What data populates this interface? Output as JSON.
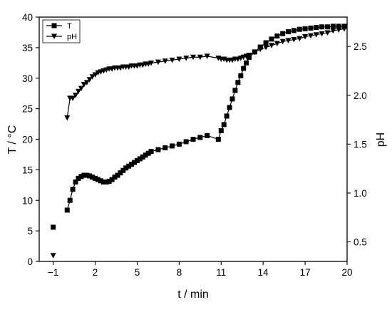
{
  "chart_data": {
    "type": "scatter",
    "xlabel": "t / min",
    "ylabel_left": "T / °C",
    "ylabel_right": "pH",
    "xlim": [
      -2,
      20
    ],
    "ylim_left": [
      0,
      40
    ],
    "ylim_right": [
      0.3,
      2.8
    ],
    "xticks": [
      -1,
      2,
      5,
      8,
      11,
      14,
      17,
      20
    ],
    "yticks_left": [
      0,
      5,
      10,
      15,
      20,
      25,
      30,
      35,
      40
    ],
    "yticks_right": [
      0.5,
      1.0,
      1.5,
      2.0,
      2.5
    ],
    "xtick_labels": [
      "−1",
      "2",
      "5",
      "8",
      "11",
      "14",
      "17",
      "20"
    ],
    "yticks_left_labels": [
      "0",
      "5",
      "10",
      "15",
      "20",
      "25",
      "30",
      "35",
      "40"
    ],
    "yticks_right_labels": [
      "0.5",
      "1.0",
      "1.5",
      "2.0",
      "2.5"
    ],
    "legend": {
      "position": "top-left",
      "entries": [
        "T",
        "pH"
      ]
    },
    "grid": false,
    "series": [
      {
        "name": "T",
        "marker": "square",
        "axis": "left",
        "x": [
          -1.0,
          0.0,
          0.2,
          0.4,
          0.6,
          0.8,
          1.0,
          1.2,
          1.4,
          1.6,
          1.8,
          2.0,
          2.2,
          2.4,
          2.6,
          2.8,
          3.0,
          3.2,
          3.4,
          3.6,
          3.8,
          4.0,
          4.2,
          4.4,
          4.6,
          4.8,
          5.0,
          5.2,
          5.4,
          5.6,
          5.8,
          6.0,
          6.5,
          7.0,
          7.5,
          8.0,
          8.5,
          9.0,
          9.5,
          10.0,
          10.8,
          11.0,
          11.2,
          11.4,
          11.6,
          11.8,
          12.0,
          12.2,
          12.4,
          12.6,
          12.8,
          13.0,
          13.4,
          13.8,
          14.2,
          14.6,
          15.0,
          15.4,
          15.8,
          16.2,
          16.6,
          17.0,
          17.4,
          17.8,
          18.2,
          18.6,
          19.0,
          19.4,
          19.8
        ],
        "y": [
          5.6,
          8.4,
          10.0,
          11.8,
          13.0,
          13.6,
          13.9,
          14.1,
          14.1,
          14.0,
          13.8,
          13.6,
          13.4,
          13.2,
          13.0,
          13.0,
          13.1,
          13.4,
          13.8,
          14.1,
          14.5,
          14.9,
          15.3,
          15.6,
          15.9,
          16.2,
          16.5,
          16.8,
          17.1,
          17.4,
          17.7,
          18.0,
          18.3,
          18.6,
          18.9,
          19.2,
          19.6,
          20.0,
          20.3,
          20.6,
          20.0,
          21.4,
          22.4,
          23.8,
          25.2,
          26.6,
          28.0,
          29.3,
          30.4,
          31.6,
          32.5,
          33.4,
          34.3,
          35.1,
          35.8,
          36.4,
          36.9,
          37.3,
          37.6,
          37.8,
          38.0,
          38.1,
          38.2,
          38.3,
          38.4,
          38.4,
          38.5,
          38.5,
          38.5
        ]
      },
      {
        "name": "pH",
        "marker": "triangle-down",
        "axis": "right",
        "x": [
          -1.0,
          0.0,
          0.2,
          0.4,
          0.6,
          0.8,
          1.0,
          1.2,
          1.4,
          1.6,
          1.8,
          2.0,
          2.2,
          2.4,
          2.6,
          2.8,
          3.0,
          3.2,
          3.4,
          3.6,
          3.8,
          4.0,
          4.2,
          4.4,
          4.6,
          4.8,
          5.0,
          5.2,
          5.4,
          5.6,
          5.8,
          6.0,
          6.5,
          7.0,
          7.5,
          8.0,
          8.5,
          9.0,
          9.5,
          10.0,
          10.8,
          11.0,
          11.2,
          11.4,
          11.6,
          11.8,
          12.0,
          12.2,
          12.4,
          12.6,
          12.8,
          13.0,
          13.4,
          13.8,
          14.2,
          14.6,
          15.0,
          15.4,
          15.8,
          16.2,
          16.6,
          17.0,
          17.4,
          17.8,
          18.2,
          18.6,
          19.0,
          19.4,
          19.8
        ],
        "y": [
          0.36,
          1.77,
          1.97,
          1.97,
          2.0,
          2.04,
          2.07,
          2.11,
          2.13,
          2.16,
          2.19,
          2.21,
          2.23,
          2.24,
          2.25,
          2.26,
          2.27,
          2.27,
          2.28,
          2.28,
          2.28,
          2.29,
          2.29,
          2.29,
          2.3,
          2.3,
          2.3,
          2.31,
          2.31,
          2.32,
          2.32,
          2.33,
          2.34,
          2.35,
          2.36,
          2.37,
          2.38,
          2.39,
          2.39,
          2.4,
          2.38,
          2.37,
          2.37,
          2.36,
          2.36,
          2.36,
          2.37,
          2.37,
          2.38,
          2.39,
          2.4,
          2.41,
          2.44,
          2.47,
          2.49,
          2.51,
          2.53,
          2.55,
          2.56,
          2.57,
          2.58,
          2.6,
          2.61,
          2.62,
          2.63,
          2.64,
          2.66,
          2.67,
          2.68
        ]
      }
    ]
  }
}
